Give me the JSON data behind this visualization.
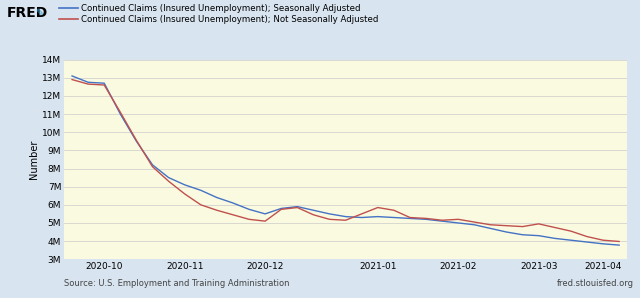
{
  "legend_sa": "Continued Claims (Insured Unemployment); Seasonally Adjusted",
  "legend_nsa": "Continued Claims (Insured Unemployment); Not Seasonally Adjusted",
  "ylabel": "Number",
  "source_left": "Source: U.S. Employment and Training Administration",
  "source_right": "fred.stlouisfed.org",
  "bg_outer": "#d8e4ef",
  "bg_inner": "#fafae0",
  "line_sa_color": "#4472c4",
  "line_nsa_color": "#c0504d",
  "ylim_min": 3000000,
  "ylim_max": 14000000,
  "yticks": [
    3000000,
    4000000,
    5000000,
    6000000,
    7000000,
    8000000,
    9000000,
    10000000,
    11000000,
    12000000,
    13000000,
    14000000
  ],
  "ytick_labels": [
    "3M",
    "4M",
    "5M",
    "6M",
    "7M",
    "8M",
    "9M",
    "10M",
    "11M",
    "12M",
    "13M",
    "14M"
  ],
  "xtick_labels": [
    "2020-10",
    "2020-11",
    "2020-12",
    "2021-01",
    "2021-02",
    "2021-03",
    "2021-04"
  ],
  "sa_x": [
    0,
    1,
    2,
    3,
    4,
    5,
    6,
    7,
    8,
    9,
    10,
    11,
    12,
    13,
    14,
    15,
    16,
    17,
    18,
    19,
    20,
    21,
    22,
    23,
    24,
    25,
    26,
    27,
    28,
    29,
    30,
    31,
    32,
    33,
    34
  ],
  "sa_y": [
    13100000,
    12750000,
    12700000,
    11000000,
    9500000,
    8200000,
    7500000,
    7100000,
    6800000,
    6400000,
    6100000,
    5750000,
    5500000,
    5800000,
    5900000,
    5700000,
    5500000,
    5350000,
    5300000,
    5350000,
    5300000,
    5250000,
    5200000,
    5100000,
    5000000,
    4900000,
    4700000,
    4500000,
    4350000,
    4300000,
    4150000,
    4050000,
    3950000,
    3850000,
    3780000
  ],
  "nsa_x": [
    0,
    1,
    2,
    3,
    4,
    5,
    6,
    7,
    8,
    9,
    10,
    11,
    12,
    13,
    14,
    15,
    16,
    17,
    18,
    19,
    20,
    21,
    22,
    23,
    24,
    25,
    26,
    27,
    28,
    29,
    30,
    31,
    32,
    33,
    34
  ],
  "nsa_y": [
    12900000,
    12650000,
    12600000,
    11100000,
    9550000,
    8100000,
    7300000,
    6600000,
    6000000,
    5700000,
    5450000,
    5200000,
    5100000,
    5750000,
    5850000,
    5450000,
    5200000,
    5150000,
    5500000,
    5850000,
    5700000,
    5300000,
    5250000,
    5150000,
    5200000,
    5050000,
    4900000,
    4850000,
    4800000,
    4950000,
    4750000,
    4550000,
    4250000,
    4050000,
    3980000
  ],
  "xtick_positions": [
    2,
    7,
    12,
    19,
    24,
    29,
    33
  ],
  "gridcolor": "#cccccc",
  "fred_color": "#cc0000"
}
